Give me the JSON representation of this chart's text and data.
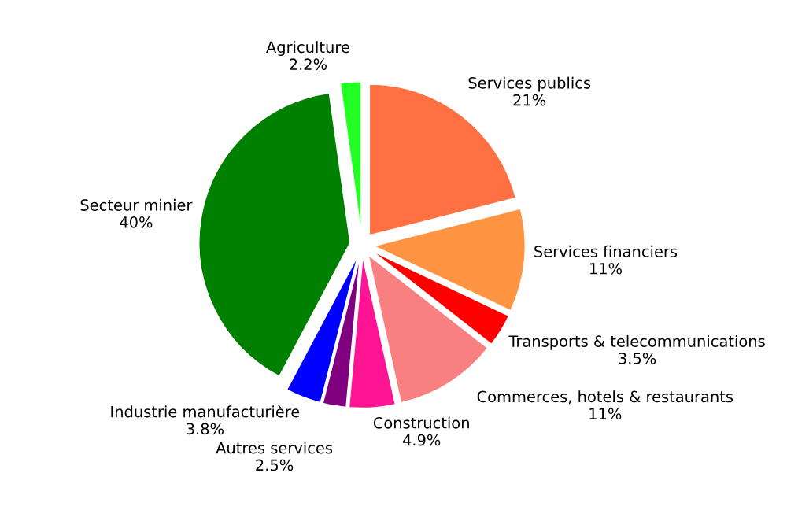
{
  "chart_data": {
    "type": "pie",
    "categories": [
      "Services publics",
      "Services financiers",
      "Transports & telecommunications",
      "Commerces, hotels & restaurants",
      "Construction",
      "Autres services",
      "Industrie manufacturière",
      "Secteur minier",
      "Agriculture"
    ],
    "values": [
      21,
      11,
      3.5,
      11,
      4.9,
      2.5,
      3.8,
      40,
      2.2
    ],
    "value_labels": [
      "21%",
      "11%",
      "3.5%",
      "11%",
      "4.9%",
      "2.5%",
      "3.8%",
      "40%",
      "2.2%"
    ],
    "colors": [
      "#ff7043",
      "#ff9442",
      "#ff0000",
      "#f88080",
      "#ff1493",
      "#800080",
      "#0000ff",
      "#008000",
      "#22ff22"
    ],
    "legend": false
  }
}
